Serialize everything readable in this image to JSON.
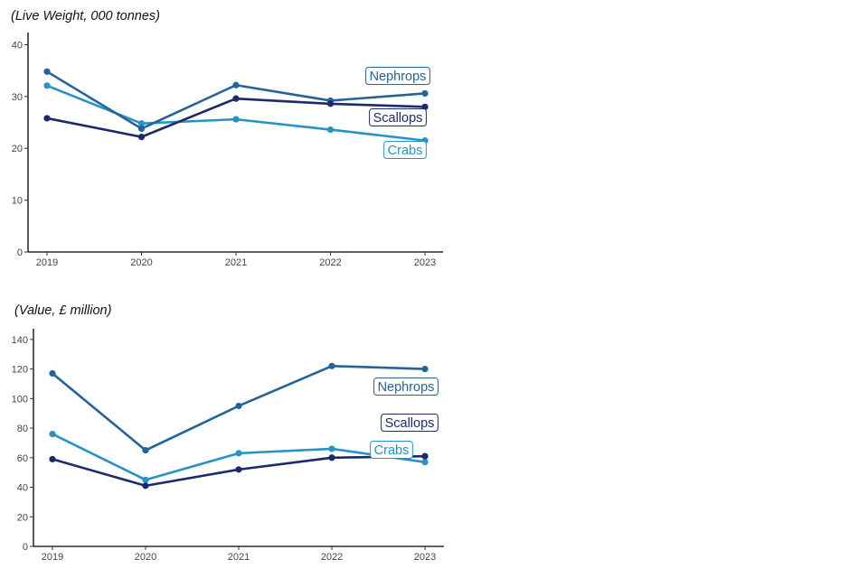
{
  "colors": {
    "Nephrops": "#24639a",
    "Scallops": "#1b2a6b",
    "Crabs": "#2693c6"
  },
  "chart_data": [
    {
      "type": "line",
      "title": "(Live Weight, 000 tonnes)",
      "categories": [
        "2019",
        "2020",
        "2021",
        "2022",
        "2023"
      ],
      "ylim": [
        0,
        42
      ],
      "yticks": [
        0,
        10,
        20,
        30,
        40
      ],
      "series": [
        {
          "name": "Nephrops",
          "values": [
            34.8,
            23.8,
            32.2,
            29.2,
            30.6
          ]
        },
        {
          "name": "Scallops",
          "values": [
            25.8,
            22.2,
            29.6,
            28.6,
            28.0
          ]
        },
        {
          "name": "Crabs",
          "values": [
            32.1,
            24.8,
            25.6,
            23.6,
            21.5
          ]
        }
      ]
    },
    {
      "type": "line",
      "title": "(Value, £ million)",
      "categories": [
        "2019",
        "2020",
        "2021",
        "2022",
        "2023"
      ],
      "ylim": [
        0,
        146
      ],
      "yticks": [
        0,
        20,
        40,
        60,
        80,
        100,
        120,
        140
      ],
      "series": [
        {
          "name": "Nephrops",
          "values": [
            117,
            65,
            95,
            122,
            120
          ]
        },
        {
          "name": "Scallops",
          "values": [
            59,
            41,
            52,
            60,
            61
          ]
        },
        {
          "name": "Crabs",
          "values": [
            76,
            45,
            63,
            66,
            57
          ]
        }
      ]
    }
  ]
}
